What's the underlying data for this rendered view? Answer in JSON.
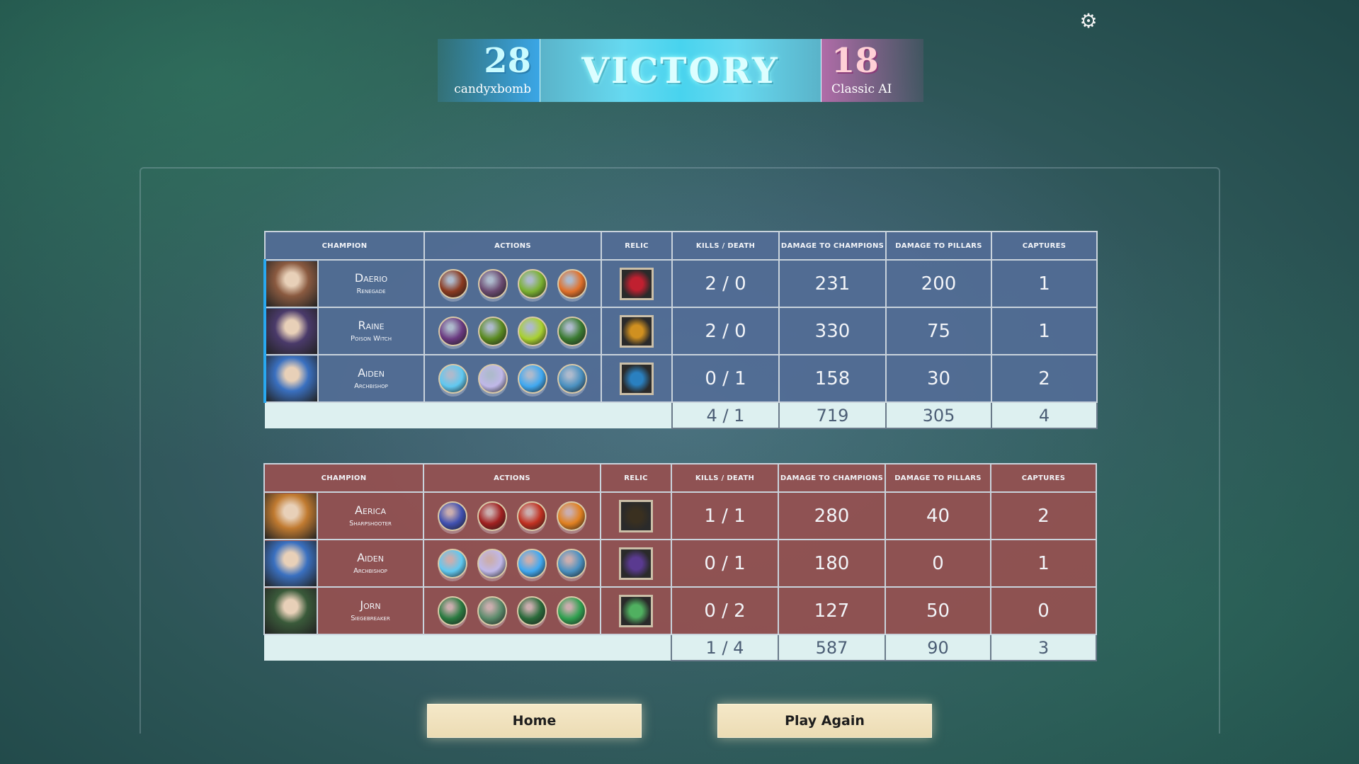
{
  "header": {
    "settings_icon": "gear-icon",
    "result": "VICTORY",
    "left": {
      "score": "28",
      "name": "candyxbomb",
      "color": "#3aa6e6"
    },
    "right": {
      "score": "18",
      "name": "Classic AI",
      "color": "#b06ca8"
    }
  },
  "columns": [
    "CHAMPION",
    "ACTIONS",
    "RELIC",
    "KILLS / DEATH",
    "DAMAGE TO CHAMPIONS",
    "DAMAGE TO PILLARS",
    "CAPTURES"
  ],
  "teams": [
    {
      "color": "#526c96",
      "rows": [
        {
          "name": "Daerio",
          "role": "Renegade",
          "kd": "2 / 0",
          "dmg_champ": "231",
          "dmg_pillar": "200",
          "captures": "1",
          "portrait": "#8a5a40",
          "actions": [
            "#8a3a20",
            "#6a4a70",
            "#7ab030",
            "#e0702a"
          ],
          "relic": "#c02030"
        },
        {
          "name": "Raine",
          "role": "Poison Witch",
          "kd": "2 / 0",
          "dmg_champ": "330",
          "dmg_pillar": "75",
          "captures": "1",
          "portrait": "#4a3a6a",
          "actions": [
            "#6a3a80",
            "#5a8a20",
            "#a8d030",
            "#3a7a30"
          ],
          "relic": "#d09020"
        },
        {
          "name": "Aiden",
          "role": "Archbishop",
          "kd": "0 / 1",
          "dmg_champ": "158",
          "dmg_pillar": "30",
          "captures": "2",
          "portrait": "#3a70c0",
          "actions": [
            "#60c8f0",
            "#c0b8e8",
            "#40a8f0",
            "#4a90c0"
          ],
          "relic": "#2a80c0"
        }
      ],
      "totals": {
        "kd": "4 / 1",
        "dmg_champ": "719",
        "dmg_pillar": "305",
        "captures": "4"
      }
    },
    {
      "color": "#965050",
      "rows": [
        {
          "name": "Aerica",
          "role": "Sharpshooter",
          "kd": "1 / 1",
          "dmg_champ": "280",
          "dmg_pillar": "40",
          "captures": "2",
          "portrait": "#c07a30",
          "actions": [
            "#4050b0",
            "#a02020",
            "#c03020",
            "#e08020"
          ],
          "relic": "#3a3020"
        },
        {
          "name": "Aiden",
          "role": "Archbishop",
          "kd": "0 / 1",
          "dmg_champ": "180",
          "dmg_pillar": "0",
          "captures": "1",
          "portrait": "#3a70c0",
          "actions": [
            "#60c8f0",
            "#c0b8e8",
            "#40a8f0",
            "#4a90c0"
          ],
          "relic": "#5a3a90"
        },
        {
          "name": "Jorn",
          "role": "Siegebreaker",
          "kd": "0 / 2",
          "dmg_champ": "127",
          "dmg_pillar": "50",
          "captures": "0",
          "portrait": "#3a5a3a",
          "actions": [
            "#2a7a40",
            "#5a8a6a",
            "#2a6a3a",
            "#30a050"
          ],
          "relic": "#50b060"
        }
      ],
      "totals": {
        "kd": "1 / 4",
        "dmg_champ": "587",
        "dmg_pillar": "90",
        "captures": "3"
      }
    }
  ],
  "buttons": {
    "home": "Home",
    "play_again": "Play Again"
  }
}
